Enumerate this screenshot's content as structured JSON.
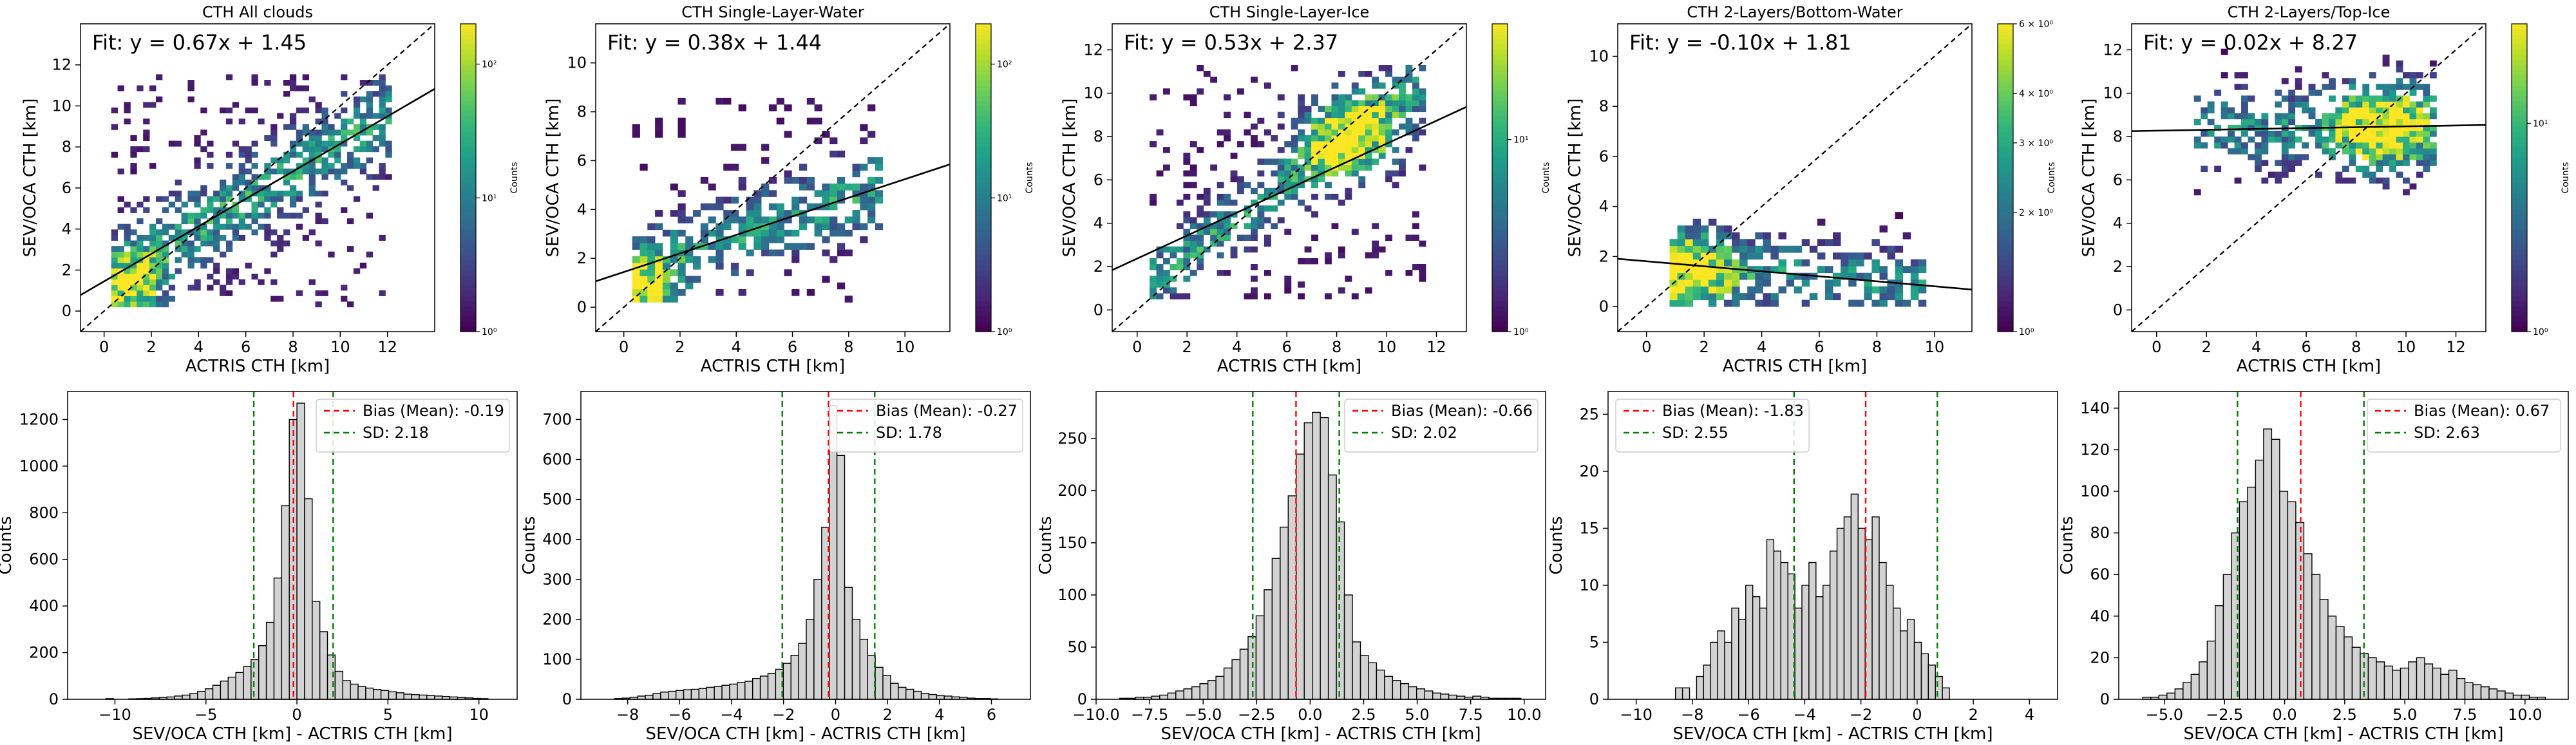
{
  "figure": {
    "colorbar_label": "Counts",
    "hist_ylabel": "Counts",
    "hist_xlabel": "SEV/OCA CTH [km] - ACTRIS CTH [km]"
  },
  "colors": {
    "hist_fill": "#d3d3d3",
    "hist_edge": "#000000",
    "bias_line": "#ff0000",
    "sd_line": "#008000",
    "fit_line": "#000000",
    "identity_line": "#000000",
    "viridis": [
      "#440154",
      "#482878",
      "#3e4a89",
      "#31688e",
      "#26828e",
      "#1f9e89",
      "#35b779",
      "#6ece58",
      "#b5de2b",
      "#fde725"
    ]
  },
  "chart_data": [
    {
      "type": "heatmap",
      "title": "CTH All clouds",
      "xlabel": "ACTRIS CTH [km]",
      "ylabel": "SEV/OCA CTH [km]",
      "xlim": [
        -1,
        14
      ],
      "ylim": [
        -1,
        14
      ],
      "xticks": [
        "0",
        "2",
        "4",
        "6",
        "8",
        "10",
        "12"
      ],
      "yticks": [
        "0",
        "2",
        "4",
        "6",
        "8",
        "10",
        "12"
      ],
      "fit_text": "Fit: y = 0.67x + 1.45",
      "fit": {
        "slope": 0.67,
        "intercept": 1.45
      },
      "identity_line": true,
      "density": {
        "x_range": [
          0.3,
          12
        ],
        "y_range": [
          0.2,
          11.3
        ],
        "cluster": [
          1.2,
          1.3,
          0.9
        ],
        "ridge_slope": 0.67,
        "ridge_intercept": 1.45,
        "ridge_spread": 1.3,
        "background": 0.1,
        "max_count": 200
      },
      "colorbar": {
        "scale": "log",
        "range": [
          1,
          200
        ],
        "ticks": [
          {
            "value": 1,
            "label": "10⁰"
          },
          {
            "value": 10,
            "label": "10¹"
          },
          {
            "value": 100,
            "label": "10²"
          }
        ]
      }
    },
    {
      "type": "heatmap",
      "title": "CTH Single-Layer-Water",
      "xlabel": "ACTRIS CTH [km]",
      "ylabel": "SEV/OCA CTH [km]",
      "xlim": [
        -1,
        11.6
      ],
      "ylim": [
        -1,
        11.6
      ],
      "xticks": [
        "0",
        "2",
        "4",
        "6",
        "8",
        "10"
      ],
      "yticks": [
        "0",
        "2",
        "4",
        "6",
        "8",
        "10"
      ],
      "fit_text": "Fit: y = 0.38x + 1.44",
      "fit": {
        "slope": 0.38,
        "intercept": 1.44
      },
      "identity_line": true,
      "density": {
        "x_range": [
          0.3,
          9
        ],
        "y_range": [
          0.2,
          8.3
        ],
        "cluster": [
          0.8,
          0.8,
          0.8
        ],
        "ridge_slope": 0.38,
        "ridge_intercept": 1.44,
        "ridge_spread": 1.1,
        "background": 0.06,
        "max_count": 200
      },
      "colorbar": {
        "scale": "log",
        "range": [
          1,
          200
        ],
        "ticks": [
          {
            "value": 1,
            "label": "10⁰"
          },
          {
            "value": 10,
            "label": "10¹"
          },
          {
            "value": 100,
            "label": "10²"
          }
        ]
      }
    },
    {
      "type": "heatmap",
      "title": "CTH Single-Layer-Ice",
      "xlabel": "ACTRIS CTH [km]",
      "ylabel": "SEV/OCA CTH [km]",
      "xlim": [
        -1,
        13.2
      ],
      "ylim": [
        -1,
        13.2
      ],
      "xticks": [
        "0",
        "2",
        "4",
        "6",
        "8",
        "10",
        "12"
      ],
      "yticks": [
        "0",
        "2",
        "4",
        "6",
        "8",
        "10",
        "12"
      ],
      "fit_text": "Fit: y = 0.53x + 2.37",
      "fit": {
        "slope": 0.53,
        "intercept": 2.37
      },
      "identity_line": true,
      "density": {
        "x_range": [
          0.5,
          11.5
        ],
        "y_range": [
          0.5,
          11.2
        ],
        "cluster": [
          8.5,
          8.0,
          1.3
        ],
        "ridge_slope": 0.85,
        "ridge_intercept": 0.8,
        "ridge_spread": 1.0,
        "background": 0.08,
        "max_count": 40
      },
      "colorbar": {
        "scale": "log",
        "range": [
          1,
          40
        ],
        "ticks": [
          {
            "value": 1,
            "label": "10⁰"
          },
          {
            "value": 10,
            "label": "10¹"
          }
        ]
      }
    },
    {
      "type": "heatmap",
      "title": "CTH 2-Layers/Bottom-Water",
      "xlabel": "ACTRIS CTH [km]",
      "ylabel": "SEV/OCA CTH [km]",
      "xlim": [
        -1,
        11.3
      ],
      "ylim": [
        -1,
        11.3
      ],
      "xticks": [
        "0",
        "2",
        "4",
        "6",
        "8",
        "10"
      ],
      "yticks": [
        "0",
        "2",
        "4",
        "6",
        "8",
        "10"
      ],
      "fit_text": "Fit: y = -0.10x + 1.81",
      "fit": {
        "slope": -0.1,
        "intercept": 1.81
      },
      "identity_line": true,
      "density": {
        "x_range": [
          0.8,
          9.5
        ],
        "y_range": [
          0.0,
          4.5
        ],
        "cluster": [
          1.5,
          1.3,
          1.0
        ],
        "ridge_slope": -0.1,
        "ridge_intercept": 1.8,
        "ridge_spread": 1.1,
        "background": 0.0,
        "max_count": 6
      },
      "colorbar": {
        "scale": "log",
        "range": [
          1,
          6
        ],
        "ticks": [
          {
            "value": 1,
            "label": "10⁰"
          },
          {
            "value": 2,
            "label": "2 × 10⁰"
          },
          {
            "value": 3,
            "label": "3 × 10⁰"
          },
          {
            "value": 4,
            "label": "4 × 10⁰"
          },
          {
            "value": 6,
            "label": "6 × 10⁰"
          }
        ]
      }
    },
    {
      "type": "heatmap",
      "title": "CTH 2-Layers/Top-Ice",
      "xlabel": "ACTRIS CTH [km]",
      "ylabel": "SEV/OCA CTH [km]",
      "xlim": [
        -1,
        13.2
      ],
      "ylim": [
        -1,
        13.2
      ],
      "xticks": [
        "0",
        "2",
        "4",
        "6",
        "8",
        "10",
        "12"
      ],
      "yticks": [
        "0",
        "2",
        "4",
        "6",
        "8",
        "10",
        "12"
      ],
      "fit_text": "Fit: y = 0.02x + 8.27",
      "fit": {
        "slope": 0.02,
        "intercept": 8.27
      },
      "identity_line": true,
      "density": {
        "x_range": [
          1.5,
          11.2
        ],
        "y_range": [
          5.3,
          11.8
        ],
        "cluster": [
          9.0,
          8.4,
          1.3
        ],
        "ridge_slope": 0.02,
        "ridge_intercept": 8.3,
        "ridge_spread": 1.4,
        "background": 0.0,
        "max_count": 30
      },
      "colorbar": {
        "scale": "log",
        "range": [
          1,
          30
        ],
        "ticks": [
          {
            "value": 1,
            "label": "10⁰"
          },
          {
            "value": 10,
            "label": "10¹"
          }
        ]
      }
    },
    {
      "type": "bar",
      "subtype": "histogram",
      "xlabel": "SEV/OCA CTH [km] - ACTRIS CTH [km]",
      "ylabel": "Counts",
      "xlim": [
        -12.6,
        12.1
      ],
      "ylim": [
        0,
        1320
      ],
      "xticks": [
        {
          "value": -10,
          "label": "−10"
        },
        {
          "value": -5,
          "label": "−5"
        },
        {
          "value": 0,
          "label": "0"
        },
        {
          "value": 5,
          "label": "5"
        },
        {
          "value": 10,
          "label": "10"
        }
      ],
      "yticks": [
        0,
        200,
        400,
        600,
        800,
        1000,
        1200
      ],
      "bin_start": -10.5,
      "bin_width": 0.42,
      "counts": [
        3,
        0,
        0,
        2,
        3,
        4,
        6,
        8,
        10,
        14,
        18,
        25,
        34,
        45,
        60,
        78,
        95,
        115,
        140,
        170,
        230,
        330,
        520,
        830,
        1200,
        1270,
        860,
        420,
        290,
        190,
        120,
        80,
        65,
        55,
        48,
        42,
        38,
        32,
        28,
        22,
        20,
        18,
        16,
        14,
        12,
        10,
        8,
        6,
        4,
        3
      ],
      "mean": -0.19,
      "sd": 2.18,
      "legend": {
        "position": "upper right",
        "entries": [
          "Bias (Mean): -0.19",
          "SD: 2.18"
        ]
      }
    },
    {
      "type": "bar",
      "subtype": "histogram",
      "xlabel": "SEV/OCA CTH [km] - ACTRIS CTH [km]",
      "ylabel": "Counts",
      "xlim": [
        -9.8,
        7.5
      ],
      "ylim": [
        0,
        770
      ],
      "xticks": [
        {
          "value": -8,
          "label": "−8"
        },
        {
          "value": -6,
          "label": "−6"
        },
        {
          "value": -4,
          "label": "−4"
        },
        {
          "value": -2,
          "label": "−2"
        },
        {
          "value": 0,
          "label": "0"
        },
        {
          "value": 2,
          "label": "2"
        },
        {
          "value": 4,
          "label": "4"
        },
        {
          "value": 6,
          "label": "6"
        }
      ],
      "yticks": [
        0,
        100,
        200,
        300,
        400,
        500,
        600,
        700
      ],
      "bin_start": -8.5,
      "bin_width": 0.295,
      "counts": [
        2,
        3,
        5,
        8,
        10,
        14,
        18,
        20,
        22,
        24,
        25,
        27,
        30,
        32,
        35,
        38,
        42,
        45,
        52,
        58,
        65,
        75,
        90,
        110,
        140,
        200,
        300,
        430,
        735,
        610,
        280,
        200,
        150,
        110,
        80,
        60,
        40,
        30,
        25,
        20,
        15,
        12,
        9,
        8,
        6,
        5,
        3,
        2,
        2,
        1
      ],
      "mean": -0.27,
      "sd": 1.78,
      "legend": {
        "position": "upper right",
        "entries": [
          "Bias (Mean): -0.27",
          "SD: 1.78"
        ]
      }
    },
    {
      "type": "bar",
      "subtype": "histogram",
      "xlabel": "SEV/OCA CTH [km] - ACTRIS CTH [km]",
      "ylabel": "Counts",
      "xlim": [
        -10,
        11
      ],
      "ylim": [
        0,
        295
      ],
      "xticks": [
        {
          "value": -10,
          "label": "−10.0"
        },
        {
          "value": -7.5,
          "label": "−7.5"
        },
        {
          "value": -5,
          "label": "−5.0"
        },
        {
          "value": -2.5,
          "label": "−2.5"
        },
        {
          "value": 0,
          "label": "0.0"
        },
        {
          "value": 2.5,
          "label": "2.5"
        },
        {
          "value": 5,
          "label": "5.0"
        },
        {
          "value": 7.5,
          "label": "7.5"
        },
        {
          "value": 10,
          "label": "10.0"
        }
      ],
      "yticks": [
        0,
        50,
        100,
        150,
        200,
        250
      ],
      "bin_start": -8.9,
      "bin_width": 0.375,
      "counts": [
        1,
        1,
        2,
        2,
        3,
        4,
        6,
        8,
        10,
        12,
        15,
        18,
        22,
        30,
        38,
        48,
        60,
        80,
        105,
        135,
        165,
        195,
        235,
        265,
        275,
        270,
        215,
        170,
        100,
        55,
        42,
        35,
        28,
        22,
        18,
        15,
        12,
        10,
        8,
        6,
        5,
        4,
        3,
        2,
        3,
        2,
        1,
        1,
        1,
        1
      ],
      "mean": -0.66,
      "sd": 2.02,
      "legend": {
        "position": "upper right",
        "entries": [
          "Bias (Mean): -0.66",
          "SD: 2.02"
        ]
      }
    },
    {
      "type": "bar",
      "subtype": "histogram",
      "xlabel": "SEV/OCA CTH [km] - ACTRIS CTH [km]",
      "ylabel": "Counts",
      "xlim": [
        -11,
        5
      ],
      "ylim": [
        0,
        27
      ],
      "xticks": [
        {
          "value": -10,
          "label": "−10"
        },
        {
          "value": -8,
          "label": "−8"
        },
        {
          "value": -6,
          "label": "−6"
        },
        {
          "value": -4,
          "label": "−4"
        },
        {
          "value": -2,
          "label": "−2"
        },
        {
          "value": 0,
          "label": "0"
        },
        {
          "value": 2,
          "label": "2"
        },
        {
          "value": 4,
          "label": "4"
        }
      ],
      "yticks": [
        0,
        5,
        10,
        15,
        20,
        25
      ],
      "bin_start": -8.6,
      "bin_width": 0.25,
      "counts": [
        1,
        1,
        0,
        2,
        3,
        5,
        6,
        5,
        8,
        7,
        10,
        9,
        8,
        14,
        13,
        12,
        11,
        8,
        10,
        12,
        9,
        10,
        13,
        15,
        16,
        18,
        15,
        14,
        16,
        12,
        10,
        8,
        6,
        7,
        5,
        4,
        3,
        2,
        1
      ],
      "mean": -1.83,
      "sd": 2.55,
      "legend": {
        "position": "upper left",
        "entries": [
          "Bias (Mean): -1.83",
          "SD: 2.55"
        ]
      }
    },
    {
      "type": "bar",
      "subtype": "histogram",
      "xlabel": "SEV/OCA CTH [km] - ACTRIS CTH [km]",
      "ylabel": "Counts",
      "xlim": [
        -6.9,
        11.8
      ],
      "ylim": [
        0,
        148
      ],
      "xticks": [
        {
          "value": -5,
          "label": "−5.0"
        },
        {
          "value": -2.5,
          "label": "−2.5"
        },
        {
          "value": 0,
          "label": "0.0"
        },
        {
          "value": 2.5,
          "label": "2.5"
        },
        {
          "value": 5,
          "label": "5.0"
        },
        {
          "value": 7.5,
          "label": "7.5"
        },
        {
          "value": 10,
          "label": "10.0"
        }
      ],
      "yticks": [
        0,
        20,
        40,
        60,
        80,
        100,
        120,
        140
      ],
      "bin_start": -5.9,
      "bin_width": 0.335,
      "counts": [
        1,
        1,
        2,
        3,
        5,
        8,
        12,
        18,
        28,
        45,
        60,
        80,
        95,
        102,
        115,
        130,
        125,
        100,
        95,
        85,
        70,
        60,
        48,
        40,
        35,
        30,
        25,
        22,
        20,
        18,
        16,
        14,
        15,
        18,
        20,
        17,
        15,
        12,
        14,
        10,
        8,
        7,
        6,
        5,
        4,
        3,
        2,
        2,
        1,
        1
      ],
      "mean": 0.67,
      "sd": 2.63,
      "legend": {
        "position": "upper right",
        "entries": [
          "Bias (Mean): 0.67",
          "SD: 2.63"
        ]
      }
    }
  ]
}
